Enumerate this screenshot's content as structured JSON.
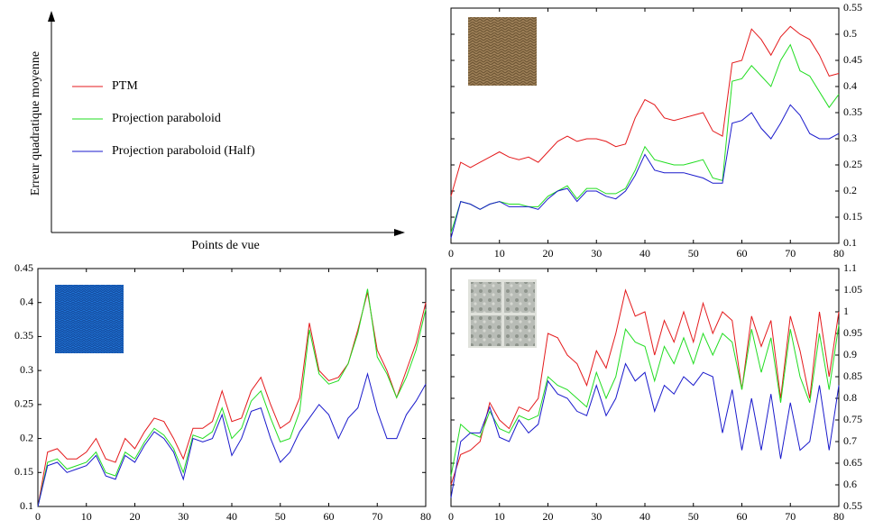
{
  "shared_axes": {
    "x_label": "Points de vue",
    "y_label": "Erreur quadratique moyenne"
  },
  "chart_data": [
    {
      "type": "line",
      "y_axis_side": "right",
      "x": [
        0,
        2,
        4,
        6,
        8,
        10,
        12,
        14,
        16,
        18,
        20,
        22,
        24,
        26,
        28,
        30,
        32,
        34,
        36,
        38,
        40,
        42,
        44,
        46,
        48,
        50,
        52,
        54,
        56,
        58,
        60,
        62,
        64,
        66,
        68,
        70,
        72,
        74,
        76,
        78,
        80
      ],
      "xlim": [
        0,
        80
      ],
      "xticks": [
        0,
        10,
        20,
        30,
        40,
        50,
        60,
        70,
        80
      ],
      "ylim": [
        0.1,
        0.55
      ],
      "yticks": [
        0.1,
        0.15,
        0.2,
        0.25,
        0.3,
        0.35,
        0.4,
        0.45,
        0.5,
        0.55
      ],
      "series": [
        {
          "name": "PTM",
          "color": "#e41a1c",
          "values": [
            0.19,
            0.255,
            0.245,
            0.255,
            0.265,
            0.275,
            0.265,
            0.26,
            0.265,
            0.255,
            0.275,
            0.295,
            0.305,
            0.295,
            0.3,
            0.3,
            0.295,
            0.285,
            0.29,
            0.34,
            0.375,
            0.365,
            0.34,
            0.335,
            0.34,
            0.345,
            0.35,
            0.315,
            0.305,
            0.445,
            0.45,
            0.51,
            0.49,
            0.46,
            0.495,
            0.515,
            0.5,
            0.49,
            0.46,
            0.42,
            0.425
          ]
        },
        {
          "name": "Projection paraboloid",
          "color": "#22dd22",
          "values": [
            0.12,
            0.18,
            0.175,
            0.165,
            0.175,
            0.18,
            0.175,
            0.175,
            0.17,
            0.17,
            0.19,
            0.2,
            0.21,
            0.185,
            0.205,
            0.205,
            0.195,
            0.195,
            0.205,
            0.24,
            0.285,
            0.26,
            0.255,
            0.25,
            0.25,
            0.255,
            0.26,
            0.225,
            0.22,
            0.41,
            0.415,
            0.44,
            0.42,
            0.4,
            0.45,
            0.48,
            0.43,
            0.42,
            0.39,
            0.36,
            0.385
          ]
        },
        {
          "name": "Projection paraboloid (Half)",
          "color": "#1a1acc",
          "values": [
            0.11,
            0.18,
            0.175,
            0.165,
            0.175,
            0.18,
            0.17,
            0.17,
            0.17,
            0.165,
            0.185,
            0.2,
            0.205,
            0.18,
            0.2,
            0.2,
            0.19,
            0.185,
            0.2,
            0.23,
            0.27,
            0.24,
            0.235,
            0.235,
            0.235,
            0.23,
            0.225,
            0.215,
            0.215,
            0.33,
            0.335,
            0.35,
            0.32,
            0.3,
            0.33,
            0.365,
            0.345,
            0.31,
            0.3,
            0.3,
            0.31
          ]
        }
      ]
    },
    {
      "type": "line",
      "y_axis_side": "left",
      "x": [
        0,
        2,
        4,
        6,
        8,
        10,
        12,
        14,
        16,
        18,
        20,
        22,
        24,
        26,
        28,
        30,
        32,
        34,
        36,
        38,
        40,
        42,
        44,
        46,
        48,
        50,
        52,
        54,
        56,
        58,
        60,
        62,
        64,
        66,
        68,
        70,
        72,
        74,
        76,
        78,
        80
      ],
      "xlim": [
        0,
        80
      ],
      "xticks": [
        0,
        10,
        20,
        30,
        40,
        50,
        60,
        70,
        80
      ],
      "ylim": [
        0.1,
        0.45
      ],
      "yticks": [
        0.1,
        0.15,
        0.2,
        0.25,
        0.3,
        0.35,
        0.4,
        0.45
      ],
      "series": [
        {
          "name": "PTM",
          "color": "#e41a1c",
          "values": [
            0.1,
            0.18,
            0.185,
            0.17,
            0.17,
            0.18,
            0.2,
            0.17,
            0.165,
            0.2,
            0.185,
            0.21,
            0.23,
            0.225,
            0.2,
            0.17,
            0.215,
            0.215,
            0.225,
            0.27,
            0.225,
            0.23,
            0.27,
            0.29,
            0.25,
            0.215,
            0.225,
            0.26,
            0.37,
            0.3,
            0.285,
            0.29,
            0.31,
            0.36,
            0.415,
            0.33,
            0.3,
            0.26,
            0.3,
            0.34,
            0.4
          ]
        },
        {
          "name": "Projection paraboloid",
          "color": "#22dd22",
          "values": [
            0.1,
            0.165,
            0.17,
            0.155,
            0.16,
            0.165,
            0.18,
            0.15,
            0.145,
            0.18,
            0.17,
            0.195,
            0.215,
            0.205,
            0.185,
            0.15,
            0.205,
            0.2,
            0.21,
            0.245,
            0.2,
            0.215,
            0.255,
            0.27,
            0.23,
            0.195,
            0.2,
            0.24,
            0.36,
            0.295,
            0.28,
            0.285,
            0.31,
            0.355,
            0.42,
            0.32,
            0.295,
            0.26,
            0.29,
            0.33,
            0.39
          ]
        },
        {
          "name": "Projection paraboloid (Half)",
          "color": "#1a1acc",
          "values": [
            0.1,
            0.16,
            0.165,
            0.15,
            0.155,
            0.16,
            0.175,
            0.145,
            0.14,
            0.175,
            0.165,
            0.19,
            0.21,
            0.2,
            0.18,
            0.14,
            0.2,
            0.195,
            0.2,
            0.235,
            0.175,
            0.2,
            0.24,
            0.245,
            0.2,
            0.165,
            0.18,
            0.21,
            0.23,
            0.25,
            0.235,
            0.2,
            0.23,
            0.245,
            0.295,
            0.24,
            0.2,
            0.2,
            0.235,
            0.255,
            0.28
          ]
        }
      ]
    },
    {
      "type": "line",
      "y_axis_side": "right",
      "x": [
        0,
        2,
        4,
        6,
        8,
        10,
        12,
        14,
        16,
        18,
        20,
        22,
        24,
        26,
        28,
        30,
        32,
        34,
        36,
        38,
        40,
        42,
        44,
        46,
        48,
        50,
        52,
        54,
        56,
        58,
        60,
        62,
        64,
        66,
        68,
        70,
        72,
        74,
        76,
        78,
        80
      ],
      "xlim": [
        0,
        80
      ],
      "xticks": [
        0,
        10,
        20,
        30,
        40,
        50,
        60,
        70,
        80
      ],
      "ylim": [
        0.55,
        1.1
      ],
      "yticks": [
        0.55,
        0.6,
        0.65,
        0.7,
        0.75,
        0.8,
        0.85,
        0.9,
        0.95,
        1,
        1.05,
        1.1
      ],
      "series": [
        {
          "name": "PTM",
          "color": "#e41a1c",
          "values": [
            0.6,
            0.67,
            0.68,
            0.7,
            0.79,
            0.75,
            0.73,
            0.78,
            0.77,
            0.8,
            0.95,
            0.94,
            0.9,
            0.88,
            0.83,
            0.91,
            0.87,
            0.95,
            1.05,
            0.99,
            1.0,
            0.9,
            0.98,
            0.93,
            1.0,
            0.93,
            1.02,
            0.95,
            1.0,
            0.98,
            0.82,
            0.99,
            0.92,
            0.98,
            0.8,
            0.99,
            0.91,
            0.8,
            1.0,
            0.85,
            1.0
          ]
        },
        {
          "name": "Projection paraboloid",
          "color": "#22dd22",
          "values": [
            0.62,
            0.74,
            0.72,
            0.71,
            0.77,
            0.73,
            0.72,
            0.76,
            0.75,
            0.76,
            0.85,
            0.83,
            0.82,
            0.8,
            0.78,
            0.86,
            0.8,
            0.85,
            0.96,
            0.93,
            0.92,
            0.84,
            0.92,
            0.88,
            0.94,
            0.88,
            0.95,
            0.9,
            0.95,
            0.93,
            0.82,
            0.96,
            0.86,
            0.94,
            0.79,
            0.96,
            0.85,
            0.79,
            0.95,
            0.82,
            0.97
          ]
        },
        {
          "name": "Projection paraboloid (Half)",
          "color": "#1a1acc",
          "values": [
            0.57,
            0.7,
            0.72,
            0.72,
            0.78,
            0.71,
            0.7,
            0.75,
            0.72,
            0.74,
            0.84,
            0.81,
            0.8,
            0.77,
            0.76,
            0.83,
            0.76,
            0.8,
            0.88,
            0.84,
            0.86,
            0.77,
            0.83,
            0.81,
            0.85,
            0.83,
            0.86,
            0.85,
            0.72,
            0.82,
            0.68,
            0.8,
            0.68,
            0.81,
            0.66,
            0.79,
            0.68,
            0.7,
            0.83,
            0.68,
            0.83
          ]
        }
      ]
    }
  ]
}
